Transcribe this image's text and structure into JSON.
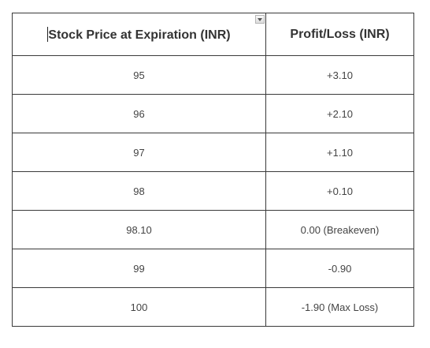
{
  "table": {
    "headers": [
      "Stock Price at Expiration (INR)",
      "Profit/Loss (INR)"
    ],
    "rows": [
      [
        "95",
        "+3.10"
      ],
      [
        "96",
        "+2.10"
      ],
      [
        "97",
        "+1.10"
      ],
      [
        "98",
        "+0.10"
      ],
      [
        "98.10",
        "0.00 (Breakeven)"
      ],
      [
        "99",
        "-0.90"
      ],
      [
        "100",
        "-1.90 (Max Loss)"
      ]
    ]
  },
  "icons": {
    "column_dropdown": "chevron-down-icon",
    "text_cursor": "text-cursor"
  },
  "colors": {
    "border": "#3a3a3a",
    "text": "#333333",
    "background": "#ffffff"
  }
}
